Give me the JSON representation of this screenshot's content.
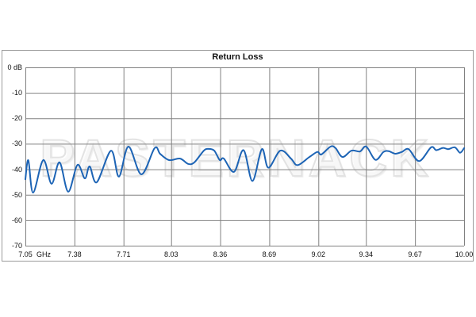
{
  "chart": {
    "title": "Return Loss",
    "watermark": "PASTERNACK",
    "colors": {
      "trace": "#1d64b5",
      "grid": "#808080",
      "outer_border": "#9b9b9b",
      "watermark_outline": "#e3e3e3"
    }
  },
  "chart_data": {
    "type": "line",
    "title": "Return Loss",
    "xlabel": "GHz",
    "ylabel": "dB",
    "xlim": [
      7.05,
      10.0
    ],
    "ylim": [
      -70,
      0
    ],
    "grid": true,
    "legend": false,
    "x_ticks": [
      7.05,
      7.38,
      7.71,
      8.03,
      8.36,
      8.69,
      9.02,
      9.34,
      9.67,
      10.0
    ],
    "x_tick_labels": [
      "7.05",
      "7.38",
      "7.71",
      "8.03",
      "8.36",
      "8.69",
      "9.02",
      "9.34",
      "9.67",
      "10.00"
    ],
    "x_unit_label": "GHz",
    "y_ticks": [
      0,
      -10,
      -20,
      -30,
      -40,
      -50,
      -60,
      -70
    ],
    "y_tick_labels": [
      "0 dB",
      "-10",
      "-20",
      "-30",
      "-40",
      "-50",
      "-60",
      "-70"
    ],
    "series": [
      {
        "name": "Return Loss",
        "x": [
          7.05,
          7.07,
          7.102,
          7.17,
          7.226,
          7.28,
          7.338,
          7.4,
          7.45,
          7.482,
          7.53,
          7.626,
          7.679,
          7.743,
          7.83,
          7.919,
          7.957,
          8.016,
          8.09,
          8.144,
          8.186,
          8.25,
          8.282,
          8.32,
          8.357,
          8.384,
          8.453,
          8.517,
          8.577,
          8.64,
          8.684,
          8.764,
          8.836,
          8.88,
          8.96,
          9.013,
          9.04,
          9.102,
          9.136,
          9.182,
          9.243,
          9.3,
          9.342,
          9.404,
          9.458,
          9.493,
          9.537,
          9.582,
          9.627,
          9.698,
          9.778,
          9.813,
          9.858,
          9.893,
          9.938,
          9.973,
          10.0
        ],
        "y": [
          -43.9,
          -36.5,
          -49.2,
          -36.4,
          -45.7,
          -37.3,
          -48.8,
          -38.3,
          -43.6,
          -38.9,
          -45.1,
          -32.7,
          -42.9,
          -31.1,
          -42.0,
          -31.7,
          -34.0,
          -36.4,
          -35.8,
          -37.9,
          -37.3,
          -32.7,
          -32.0,
          -32.7,
          -36.4,
          -35.8,
          -41.0,
          -32.5,
          -44.6,
          -32.1,
          -39.4,
          -32.7,
          -35.8,
          -38.4,
          -35.2,
          -33.2,
          -34.2,
          -31.1,
          -31.7,
          -35.2,
          -32.7,
          -33.0,
          -31.1,
          -36.3,
          -33.2,
          -32.9,
          -33.9,
          -33.2,
          -32.1,
          -36.8,
          -31.4,
          -32.5,
          -31.6,
          -32.1,
          -31.4,
          -33.5,
          -31.7
        ]
      }
    ]
  }
}
